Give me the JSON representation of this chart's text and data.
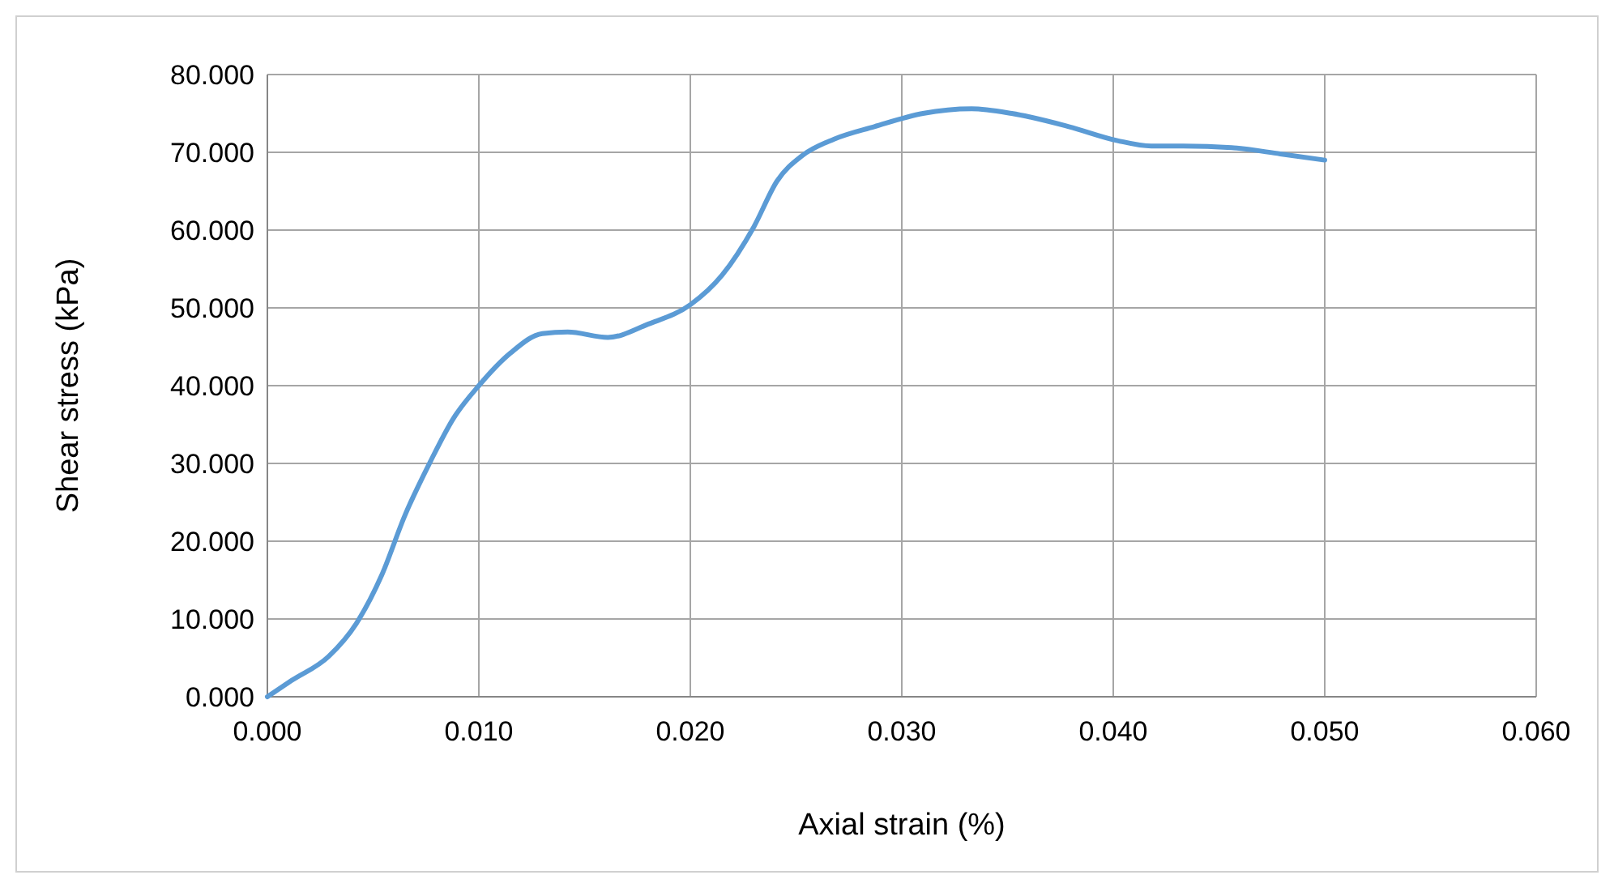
{
  "chart_data": {
    "type": "line",
    "xlabel": "Axial strain (%)",
    "ylabel": "Shear stress (kPa)",
    "x": [
      0,
      0.00115,
      0.0029,
      0.0042,
      0.0054,
      0.0065,
      0.0077,
      0.0088,
      0.01,
      0.0115,
      0.013,
      0.0142,
      0.0161,
      0.018,
      0.02,
      0.0215,
      0.023,
      0.0241,
      0.0253,
      0.0268,
      0.0287,
      0.031,
      0.0333,
      0.0352,
      0.0379,
      0.0402,
      0.0418,
      0.0433,
      0.0456,
      0.0479,
      0.05
    ],
    "series": [
      {
        "color": "#5b9bd5",
        "values": [
          0,
          2.1,
          5.2,
          9.4,
          15.6,
          23.3,
          30.2,
          35.8,
          40,
          44.2,
          46.7,
          46.9,
          46.2,
          47.9,
          50.4,
          54.2,
          60.4,
          66.3,
          69.6,
          71.7,
          73.3,
          75,
          75.6,
          75,
          73.3,
          71.5,
          70.8,
          70.8,
          70.6,
          69.8,
          69
        ]
      }
    ],
    "xlim": [
      0,
      0.06
    ],
    "xticks": [
      {
        "value": 0,
        "label": "0.000"
      },
      {
        "value": 0.01,
        "label": "0.010"
      },
      {
        "value": 0.02,
        "label": "0.020"
      },
      {
        "value": 0.03,
        "label": "0.030"
      },
      {
        "value": 0.04,
        "label": "0.040"
      },
      {
        "value": 0.05,
        "label": "0.050"
      },
      {
        "value": 0.06,
        "label": "0.060"
      }
    ],
    "ylim": [
      0,
      80
    ],
    "yticks": [
      {
        "value": 0,
        "label": "0.000"
      },
      {
        "value": 10,
        "label": "10.000"
      },
      {
        "value": 20,
        "label": "20.000"
      },
      {
        "value": 30,
        "label": "30.000"
      },
      {
        "value": 40,
        "label": "40.000"
      },
      {
        "value": 50,
        "label": "50.000"
      },
      {
        "value": 60,
        "label": "60.000"
      },
      {
        "value": 70,
        "label": "70.000"
      },
      {
        "value": 80,
        "label": "80.000"
      }
    ],
    "grid": true,
    "marker": "none",
    "line_style": "solid"
  }
}
